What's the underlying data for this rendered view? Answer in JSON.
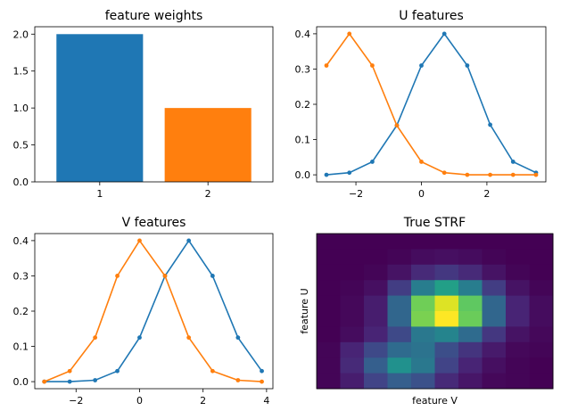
{
  "chart_data": [
    {
      "type": "bar",
      "title": "feature weights",
      "categories": [
        "1",
        "2"
      ],
      "values": [
        2.0,
        1.0
      ],
      "colors": [
        "#1f77b4",
        "#ff7f0e"
      ],
      "ylim": [
        0,
        2.1
      ],
      "yticks": [
        "0.0",
        "0.5",
        "1.0",
        "1.5",
        "2.0"
      ],
      "ytick_values": [
        0,
        0.5,
        1.0,
        1.5,
        2.0
      ]
    },
    {
      "type": "line",
      "title": "U features",
      "x": [
        -2.9,
        -2.2,
        -1.5,
        -0.75,
        0.0,
        0.7,
        1.4,
        2.1,
        2.8,
        3.5
      ],
      "series": [
        {
          "color": "#1f77b4",
          "values": [
            0.0,
            0.006,
            0.037,
            0.14,
            0.31,
            0.4,
            0.31,
            0.142,
            0.037,
            0.006
          ]
        },
        {
          "color": "#ff7f0e",
          "values": [
            0.31,
            0.4,
            0.31,
            0.14,
            0.037,
            0.006,
            0.0,
            0.0,
            0.0,
            0.0
          ]
        }
      ],
      "xlim": [
        -3.2,
        3.8
      ],
      "ylim": [
        -0.02,
        0.42
      ],
      "xticks": [
        "−2",
        "0",
        "2"
      ],
      "xtick_values": [
        -2,
        0,
        2
      ],
      "yticks": [
        "0.0",
        "0.1",
        "0.2",
        "0.3",
        "0.4"
      ],
      "ytick_values": [
        0,
        0.1,
        0.2,
        0.3,
        0.4
      ]
    },
    {
      "type": "line",
      "title": "V features",
      "x": [
        -3.0,
        -2.2,
        -1.4,
        -0.7,
        0.0,
        0.8,
        1.55,
        2.3,
        3.1,
        3.85
      ],
      "series": [
        {
          "color": "#1f77b4",
          "values": [
            0.0,
            0.0,
            0.004,
            0.03,
            0.125,
            0.3,
            0.4,
            0.3,
            0.125,
            0.03
          ]
        },
        {
          "color": "#ff7f0e",
          "values": [
            0.0,
            0.03,
            0.125,
            0.3,
            0.4,
            0.3,
            0.125,
            0.03,
            0.004,
            0.0
          ]
        }
      ],
      "xlim": [
        -3.3,
        4.2
      ],
      "ylim": [
        -0.02,
        0.42
      ],
      "xticks": [
        "−2",
        "0",
        "2",
        "4"
      ],
      "xtick_values": [
        -2,
        0,
        2,
        4
      ],
      "yticks": [
        "0.0",
        "0.1",
        "0.2",
        "0.3",
        "0.4"
      ],
      "ytick_values": [
        0,
        0.1,
        0.2,
        0.3,
        0.4
      ]
    },
    {
      "type": "heatmap",
      "title": "True STRF",
      "xlabel": "feature V",
      "ylabel": "feature U",
      "colormap": "viridis",
      "values": [
        [
          0.0,
          0.0,
          0.0,
          0.0,
          0.0,
          0.0,
          0.0,
          0.0,
          0.0,
          0.0
        ],
        [
          0.0,
          0.0,
          0.0,
          0.01,
          0.03,
          0.04,
          0.03,
          0.01,
          0.0,
          0.0
        ],
        [
          0.0,
          0.0,
          0.01,
          0.05,
          0.12,
          0.16,
          0.12,
          0.05,
          0.01,
          0.0
        ],
        [
          0.0,
          0.01,
          0.04,
          0.18,
          0.42,
          0.56,
          0.42,
          0.18,
          0.05,
          0.01
        ],
        [
          0.0,
          0.02,
          0.08,
          0.33,
          0.78,
          0.95,
          0.75,
          0.33,
          0.1,
          0.03
        ],
        [
          0.0,
          0.02,
          0.08,
          0.33,
          0.8,
          1.0,
          0.77,
          0.33,
          0.1,
          0.03
        ],
        [
          0.0,
          0.03,
          0.1,
          0.22,
          0.4,
          0.45,
          0.35,
          0.16,
          0.05,
          0.02
        ],
        [
          0.01,
          0.1,
          0.22,
          0.35,
          0.38,
          0.24,
          0.15,
          0.07,
          0.02,
          0.01
        ],
        [
          0.01,
          0.12,
          0.3,
          0.5,
          0.4,
          0.2,
          0.1,
          0.04,
          0.01,
          0.0
        ],
        [
          0.01,
          0.08,
          0.2,
          0.3,
          0.25,
          0.12,
          0.06,
          0.02,
          0.01,
          0.0
        ]
      ]
    }
  ]
}
